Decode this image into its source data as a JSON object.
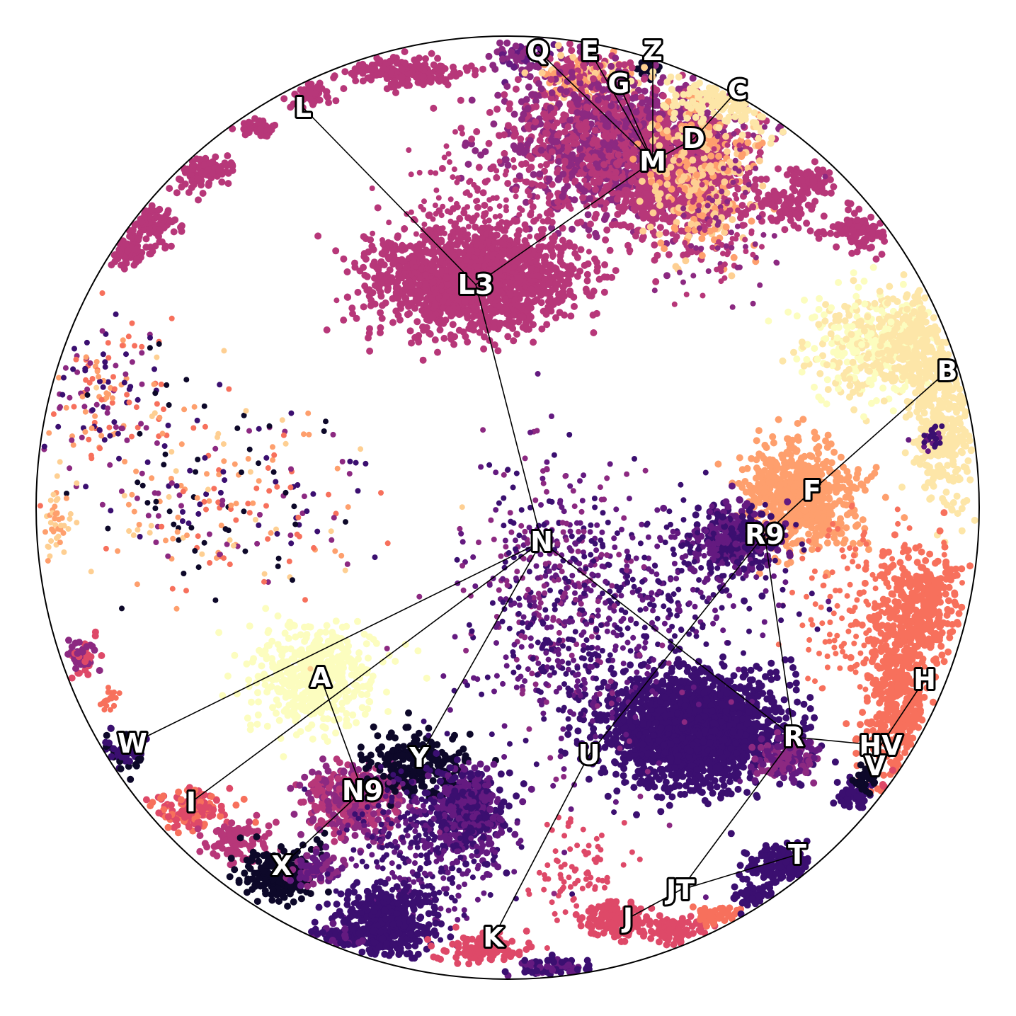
{
  "diagram": {
    "type": "hyperbolic-tree-embedding",
    "colors": {
      "c0": "#0d0829",
      "c1": "#3b0f70",
      "c2": "#641a80",
      "c3": "#8c2981",
      "c4": "#b73779",
      "c5": "#de4968",
      "c6": "#f7705c",
      "c7": "#fe9f6d",
      "c8": "#fecf92",
      "c9": "#fcfdbf",
      "c8b": "#fde6a8"
    },
    "nodes": [
      {
        "id": "Q",
        "label": "Q"
      },
      {
        "id": "E",
        "label": "E"
      },
      {
        "id": "Z",
        "label": "Z"
      },
      {
        "id": "G",
        "label": "G"
      },
      {
        "id": "C",
        "label": "C"
      },
      {
        "id": "L",
        "label": "L"
      },
      {
        "id": "D",
        "label": "D"
      },
      {
        "id": "M",
        "label": "M"
      },
      {
        "id": "L3",
        "label": "L3"
      },
      {
        "id": "B",
        "label": "B"
      },
      {
        "id": "F",
        "label": "F"
      },
      {
        "id": "R9",
        "label": "R9"
      },
      {
        "id": "N",
        "label": "N"
      },
      {
        "id": "H",
        "label": "H"
      },
      {
        "id": "A",
        "label": "A"
      },
      {
        "id": "W",
        "label": "W"
      },
      {
        "id": "R",
        "label": "R"
      },
      {
        "id": "HV",
        "label": "HV"
      },
      {
        "id": "V",
        "label": "V"
      },
      {
        "id": "Y",
        "label": "Y"
      },
      {
        "id": "U",
        "label": "U"
      },
      {
        "id": "I",
        "label": "I"
      },
      {
        "id": "N9",
        "label": "N9"
      },
      {
        "id": "T",
        "label": "T"
      },
      {
        "id": "X",
        "label": "X"
      },
      {
        "id": "JT",
        "label": "JT"
      },
      {
        "id": "J",
        "label": "J"
      },
      {
        "id": "K",
        "label": "K"
      }
    ],
    "edges": [
      [
        "M",
        "Q"
      ],
      [
        "M",
        "E"
      ],
      [
        "M",
        "Z"
      ],
      [
        "M",
        "G"
      ],
      [
        "M",
        "D"
      ],
      [
        "D",
        "C"
      ],
      [
        "M",
        "L3"
      ],
      [
        "L3",
        "L"
      ],
      [
        "L3",
        "N"
      ],
      [
        "N",
        "W"
      ],
      [
        "N",
        "I"
      ],
      [
        "N",
        "Y"
      ],
      [
        "N",
        "R"
      ],
      [
        "R9",
        "F"
      ],
      [
        "F",
        "B"
      ],
      [
        "R9",
        "R"
      ],
      [
        "R9",
        "U"
      ],
      [
        "U",
        "K"
      ],
      [
        "A",
        "N9"
      ],
      [
        "N9",
        "X"
      ],
      [
        "R",
        "HV"
      ],
      [
        "HV",
        "H"
      ],
      [
        "R",
        "JT"
      ],
      [
        "JT",
        "T"
      ],
      [
        "JT",
        "J"
      ]
    ]
  }
}
